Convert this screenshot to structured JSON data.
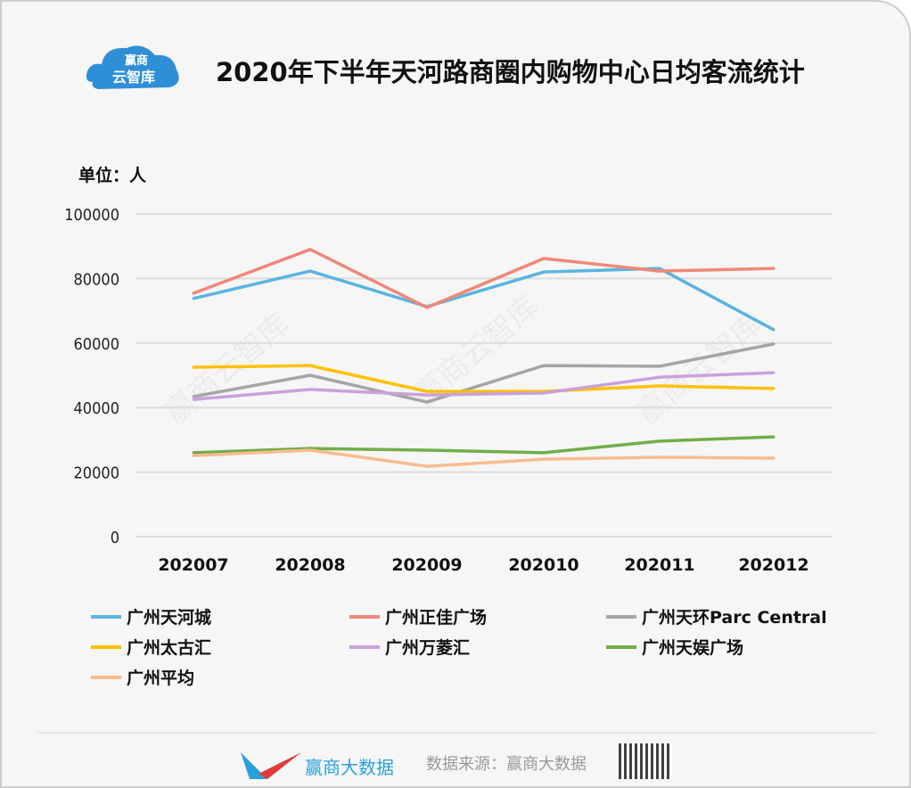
{
  "logo": {
    "line1": "赢商",
    "line2": "云智库"
  },
  "title": "2020年下半年天河路商圈内购物中心日均客流统计",
  "unit_label": "单位：人",
  "watermark": "赢商云智库",
  "chart_data": {
    "type": "line",
    "title": "2020年下半年天河路商圈内购物中心日均客流统计",
    "ylabel": "单位：人",
    "ylim": [
      0,
      100000
    ],
    "yticks": [
      "0",
      "20000",
      "40000",
      "60000",
      "80000",
      "100000"
    ],
    "grid": true,
    "legend_placement": "bottom",
    "categories": [
      "202007",
      "202008",
      "202009",
      "202010",
      "202011",
      "202012"
    ],
    "series": [
      {
        "name": "广州天河城",
        "color": "#5ab4e0",
        "values": [
          73800,
          82300,
          71300,
          82000,
          83100,
          64100
        ]
      },
      {
        "name": "广州正佳广场",
        "color": "#f08878",
        "values": [
          75400,
          89000,
          71000,
          86200,
          82300,
          83100
        ]
      },
      {
        "name": "广州天环Parc Central",
        "color": "#a5a5a5",
        "values": [
          43400,
          50000,
          41700,
          53000,
          52800,
          59700
        ]
      },
      {
        "name": "广州太古汇",
        "color": "#ffc000",
        "values": [
          52500,
          53000,
          45000,
          45000,
          46700,
          45900
        ]
      },
      {
        "name": "广州万菱汇",
        "color": "#c9a0dc",
        "values": [
          42500,
          45600,
          43900,
          44500,
          49400,
          50800
        ]
      },
      {
        "name": "广州天娱广场",
        "color": "#70ad47",
        "values": [
          26000,
          27300,
          26800,
          26000,
          29600,
          30900
        ]
      },
      {
        "name": "广州平均",
        "color": "#f8bc8c",
        "values": [
          25100,
          26800,
          21800,
          24000,
          24600,
          24300
        ]
      }
    ]
  },
  "footer": {
    "brand": "赢商大数据",
    "source": "数据来源：赢商大数据"
  }
}
